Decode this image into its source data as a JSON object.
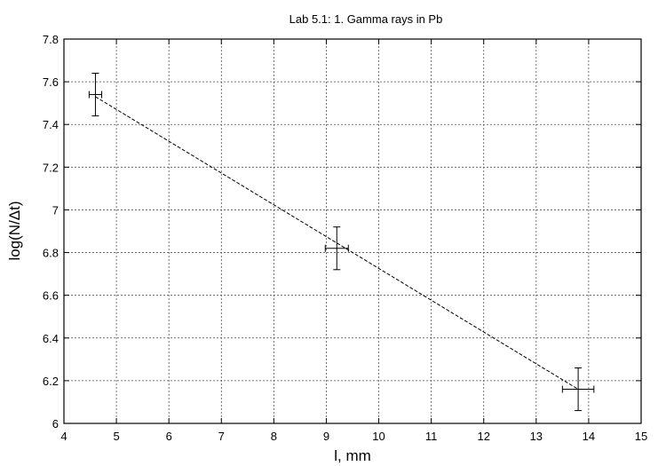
{
  "chart_data": {
    "type": "scatter",
    "title": "Lab 5.1: 1. Gamma rays in Pb",
    "xlabel": "l, mm",
    "ylabel": "log(N/Δt)",
    "xlim": [
      4,
      15
    ],
    "ylim": [
      6,
      7.8
    ],
    "xticks": [
      4,
      5,
      6,
      7,
      8,
      9,
      10,
      11,
      12,
      13,
      14,
      15
    ],
    "yticks": [
      6,
      6.2,
      6.4,
      6.6,
      6.8,
      7,
      7.2,
      7.4,
      7.6,
      7.8
    ],
    "ytick_labels": [
      "6",
      "6.2",
      "6.4",
      "6.6",
      "6.8",
      "7",
      "7.2",
      "7.4",
      "7.6",
      "7.8"
    ],
    "grid": true,
    "legend": "none",
    "points": [
      {
        "x": 4.6,
        "y": 7.54,
        "xerr": 0.12,
        "yerr": 0.1
      },
      {
        "x": 9.2,
        "y": 6.82,
        "xerr": 0.22,
        "yerr": 0.1
      },
      {
        "x": 13.8,
        "y": 6.16,
        "xerr": 0.3,
        "yerr": 0.1
      }
    ],
    "fit_line": {
      "x": [
        4.6,
        13.8
      ],
      "y": [
        7.53,
        6.16
      ]
    }
  }
}
